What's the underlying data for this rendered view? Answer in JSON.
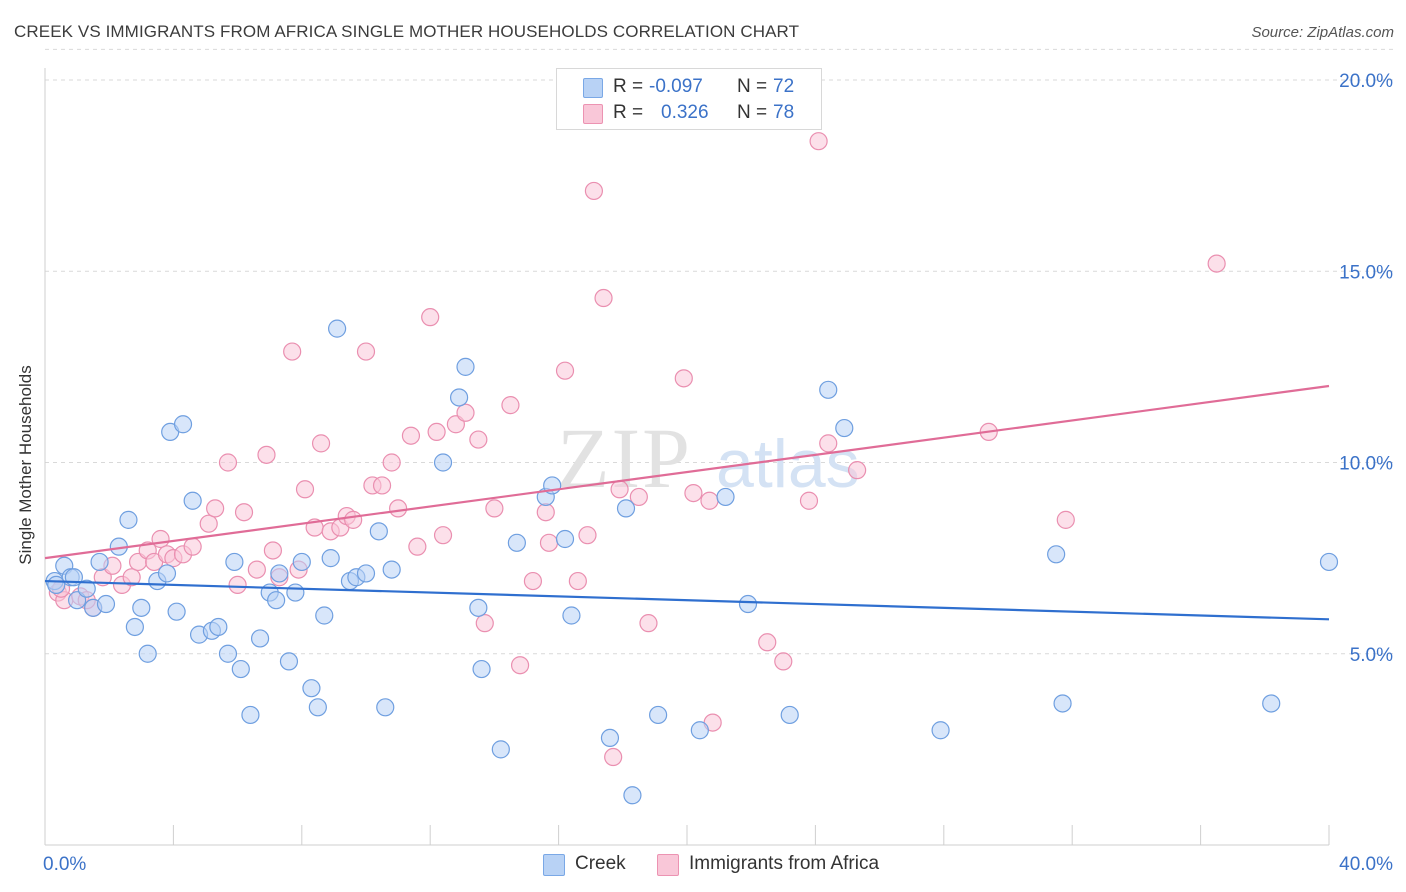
{
  "title": "CREEK VS IMMIGRANTS FROM AFRICA SINGLE MOTHER HOUSEHOLDS CORRELATION CHART",
  "source": "Source: ZipAtlas.com",
  "watermark": {
    "zip": "ZIP",
    "atlas": "atlas"
  },
  "legend": {
    "creek": {
      "r_label": "R =",
      "r_value": "-0.097",
      "n_label": "N =",
      "n_value": "72"
    },
    "africa": {
      "r_label": "R =",
      "r_value": "0.326",
      "n_label": "N =",
      "n_value": "78"
    }
  },
  "bottom_legend": {
    "creek": "Creek",
    "africa": "Immigrants from Africa"
  },
  "colors": {
    "creek_fill": "#b8d2f5",
    "creek_stroke": "#6f9fe0",
    "creek_line": "#2f6fcf",
    "africa_fill": "#f9c7d8",
    "africa_stroke": "#ea8fb0",
    "africa_line": "#e06c97",
    "tick_label": "#3b72c8",
    "grid": "#d9d9d9"
  },
  "chart_data": {
    "type": "scatter",
    "title": "CREEK VS IMMIGRANTS FROM AFRICA SINGLE MOTHER HOUSEHOLDS CORRELATION CHART",
    "xlabel": "",
    "ylabel": "Single Mother Households",
    "xlim": [
      0,
      40
    ],
    "ylim": [
      0,
      20.8
    ],
    "x_tick_labels": [
      "0.0%",
      "40.0%"
    ],
    "y_ticks": [
      5,
      10,
      15,
      20
    ],
    "y_tick_labels": [
      "5.0%",
      "10.0%",
      "15.0%",
      "20.0%"
    ],
    "grid": "horizontal dashed",
    "legend_position": "top-center",
    "series": [
      {
        "name": "Creek",
        "r": -0.097,
        "n": 72,
        "trend": {
          "x": [
            0,
            40
          ],
          "y": [
            6.9,
            5.9
          ]
        },
        "points": [
          [
            0.3,
            6.9
          ],
          [
            0.6,
            7.3
          ],
          [
            0.8,
            7.0
          ],
          [
            1.0,
            6.4
          ],
          [
            1.3,
            6.7
          ],
          [
            1.5,
            6.2
          ],
          [
            1.7,
            7.4
          ],
          [
            1.9,
            6.3
          ],
          [
            2.3,
            7.8
          ],
          [
            2.6,
            8.5
          ],
          [
            2.8,
            5.7
          ],
          [
            3.0,
            6.2
          ],
          [
            3.2,
            5.0
          ],
          [
            3.5,
            6.9
          ],
          [
            3.8,
            7.1
          ],
          [
            3.9,
            10.8
          ],
          [
            4.1,
            6.1
          ],
          [
            4.3,
            11.0
          ],
          [
            4.6,
            9.0
          ],
          [
            4.8,
            5.5
          ],
          [
            5.2,
            5.6
          ],
          [
            5.4,
            5.7
          ],
          [
            5.7,
            5.0
          ],
          [
            5.9,
            7.4
          ],
          [
            6.1,
            4.6
          ],
          [
            6.4,
            3.4
          ],
          [
            6.7,
            5.4
          ],
          [
            7.0,
            6.6
          ],
          [
            7.2,
            6.4
          ],
          [
            7.3,
            7.1
          ],
          [
            7.6,
            4.8
          ],
          [
            7.8,
            6.6
          ],
          [
            8.0,
            7.4
          ],
          [
            8.3,
            4.1
          ],
          [
            8.5,
            3.6
          ],
          [
            8.7,
            6.0
          ],
          [
            8.9,
            7.5
          ],
          [
            9.1,
            13.5
          ],
          [
            9.5,
            6.9
          ],
          [
            9.7,
            7.0
          ],
          [
            10.0,
            7.1
          ],
          [
            10.4,
            8.2
          ],
          [
            10.6,
            3.6
          ],
          [
            10.8,
            7.2
          ],
          [
            12.4,
            10.0
          ],
          [
            12.9,
            11.7
          ],
          [
            13.1,
            12.5
          ],
          [
            13.5,
            6.2
          ],
          [
            13.6,
            4.6
          ],
          [
            14.2,
            2.5
          ],
          [
            14.7,
            7.9
          ],
          [
            15.6,
            9.1
          ],
          [
            15.8,
            9.4
          ],
          [
            16.2,
            8.0
          ],
          [
            16.4,
            6.0
          ],
          [
            17.6,
            2.8
          ],
          [
            18.1,
            8.8
          ],
          [
            18.3,
            1.3
          ],
          [
            19.1,
            3.4
          ],
          [
            20.4,
            3.0
          ],
          [
            21.2,
            9.1
          ],
          [
            21.9,
            6.3
          ],
          [
            23.2,
            3.4
          ],
          [
            24.4,
            11.9
          ],
          [
            24.9,
            10.9
          ],
          [
            27.9,
            3.0
          ],
          [
            31.5,
            7.6
          ],
          [
            31.7,
            3.7
          ],
          [
            38.2,
            3.7
          ],
          [
            40.0,
            7.4
          ],
          [
            0.35,
            6.8
          ],
          [
            0.9,
            7.0
          ]
        ]
      },
      {
        "name": "Immigrants from Africa",
        "r": 0.326,
        "n": 78,
        "trend": {
          "x": [
            0,
            40
          ],
          "y": [
            7.5,
            12.0
          ]
        },
        "points": [
          [
            0.4,
            6.6
          ],
          [
            0.6,
            6.4
          ],
          [
            1.1,
            6.5
          ],
          [
            1.5,
            6.2
          ],
          [
            1.8,
            7.0
          ],
          [
            2.1,
            7.3
          ],
          [
            2.4,
            6.8
          ],
          [
            2.7,
            7.0
          ],
          [
            2.9,
            7.4
          ],
          [
            3.2,
            7.7
          ],
          [
            3.4,
            7.4
          ],
          [
            3.6,
            8.0
          ],
          [
            3.8,
            7.6
          ],
          [
            4.0,
            7.5
          ],
          [
            4.3,
            7.6
          ],
          [
            4.6,
            7.8
          ],
          [
            5.1,
            8.4
          ],
          [
            5.3,
            8.8
          ],
          [
            5.7,
            10.0
          ],
          [
            6.0,
            6.8
          ],
          [
            6.2,
            8.7
          ],
          [
            6.6,
            7.2
          ],
          [
            6.9,
            10.2
          ],
          [
            7.1,
            7.7
          ],
          [
            7.3,
            7.0
          ],
          [
            7.7,
            12.9
          ],
          [
            7.9,
            7.2
          ],
          [
            8.1,
            9.3
          ],
          [
            8.4,
            8.3
          ],
          [
            8.6,
            10.5
          ],
          [
            8.9,
            8.2
          ],
          [
            9.2,
            8.3
          ],
          [
            9.4,
            8.6
          ],
          [
            9.6,
            8.5
          ],
          [
            10.0,
            12.9
          ],
          [
            10.2,
            9.4
          ],
          [
            10.5,
            9.4
          ],
          [
            10.8,
            10.0
          ],
          [
            11.0,
            8.8
          ],
          [
            11.4,
            10.7
          ],
          [
            11.6,
            7.8
          ],
          [
            12.0,
            13.8
          ],
          [
            12.2,
            10.8
          ],
          [
            12.4,
            8.1
          ],
          [
            12.8,
            11.0
          ],
          [
            13.1,
            11.3
          ],
          [
            13.5,
            10.6
          ],
          [
            13.7,
            5.8
          ],
          [
            14.0,
            8.8
          ],
          [
            14.5,
            11.5
          ],
          [
            14.8,
            4.7
          ],
          [
            15.2,
            6.9
          ],
          [
            15.6,
            8.7
          ],
          [
            15.7,
            7.9
          ],
          [
            16.2,
            12.4
          ],
          [
            16.6,
            6.9
          ],
          [
            16.9,
            8.1
          ],
          [
            17.1,
            17.1
          ],
          [
            17.4,
            14.3
          ],
          [
            17.7,
            2.3
          ],
          [
            17.9,
            9.3
          ],
          [
            18.5,
            9.1
          ],
          [
            18.8,
            5.8
          ],
          [
            19.9,
            12.2
          ],
          [
            20.2,
            9.2
          ],
          [
            20.7,
            9.0
          ],
          [
            20.8,
            3.2
          ],
          [
            22.5,
            5.3
          ],
          [
            23.0,
            4.8
          ],
          [
            23.8,
            9.0
          ],
          [
            24.1,
            18.4
          ],
          [
            24.4,
            10.5
          ],
          [
            25.3,
            9.8
          ],
          [
            29.4,
            10.8
          ],
          [
            31.8,
            8.5
          ],
          [
            36.5,
            15.2
          ],
          [
            0.5,
            6.7
          ],
          [
            1.3,
            6.4
          ]
        ]
      }
    ]
  }
}
